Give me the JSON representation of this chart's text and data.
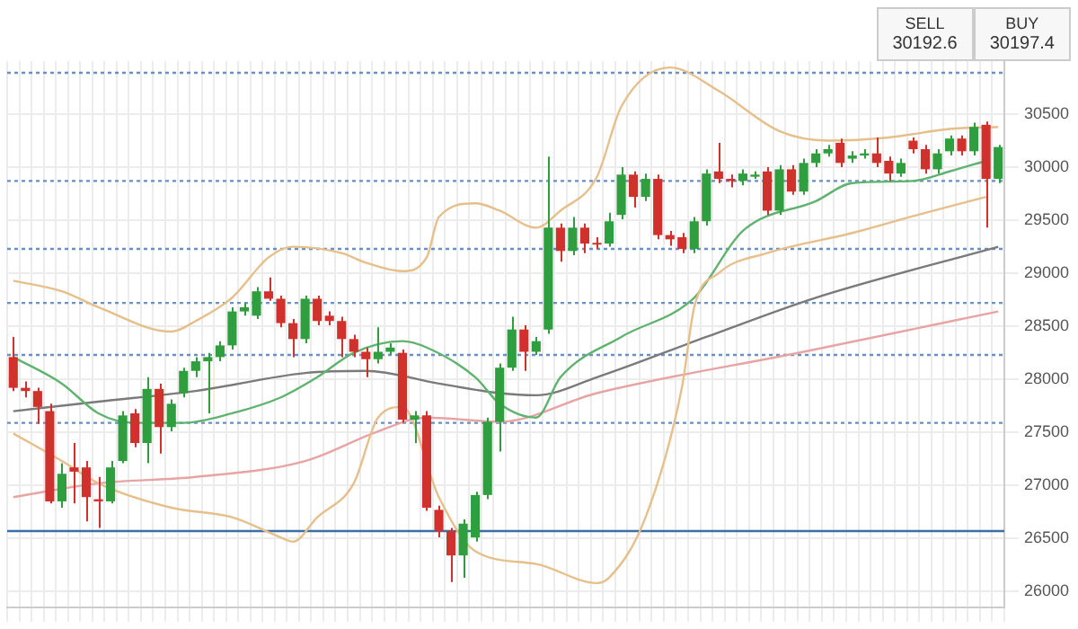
{
  "chart_data": {
    "type": "candlestick",
    "categories": [
      null,
      null,
      null,
      null,
      null,
      null,
      null,
      null,
      null,
      null,
      null,
      null,
      null,
      null,
      null,
      null,
      null,
      null,
      null,
      null,
      null,
      null,
      null,
      null,
      null,
      null,
      null,
      null,
      null,
      null,
      null,
      null,
      null,
      null,
      null,
      null,
      null,
      null,
      null,
      null,
      null,
      null,
      null,
      null,
      null,
      null,
      null,
      null,
      null,
      null,
      null,
      null,
      null,
      null,
      null,
      null,
      null,
      null,
      null,
      null,
      null,
      null,
      null,
      null,
      null,
      null,
      null,
      null,
      null,
      null,
      null,
      null,
      null,
      null,
      null,
      null,
      null,
      null,
      null,
      null,
      null,
      null
    ],
    "ohlc": [
      [
        28210,
        28400,
        27890,
        27920
      ],
      [
        27920,
        27980,
        27830,
        27890
      ],
      [
        27890,
        27920,
        27580,
        27740
      ],
      [
        27700,
        27770,
        26830,
        26850
      ],
      [
        26850,
        27210,
        26790,
        27110
      ],
      [
        27170,
        27400,
        26830,
        27130
      ],
      [
        27170,
        27230,
        26660,
        26890
      ],
      [
        26870,
        27080,
        26600,
        26850
      ],
      [
        26850,
        27230,
        26830,
        27170
      ],
      [
        27230,
        27700,
        27210,
        27660
      ],
      [
        27680,
        27720,
        27360,
        27400
      ],
      [
        27400,
        28020,
        27210,
        27910
      ],
      [
        27910,
        27960,
        27300,
        27550
      ],
      [
        27550,
        27810,
        27510,
        27770
      ],
      [
        27870,
        28110,
        27830,
        28080
      ],
      [
        28080,
        28210,
        28020,
        28170
      ],
      [
        28170,
        28250,
        27680,
        28210
      ],
      [
        28210,
        28360,
        28170,
        28320
      ],
      [
        28320,
        28680,
        28280,
        28640
      ],
      [
        28640,
        28720,
        28600,
        28680
      ],
      [
        28600,
        28870,
        28570,
        28830
      ],
      [
        28830,
        28960,
        28740,
        28760
      ],
      [
        28760,
        28790,
        28490,
        28530
      ],
      [
        28530,
        28570,
        28210,
        28380
      ],
      [
        28380,
        28790,
        28340,
        28760
      ],
      [
        28760,
        28790,
        28510,
        28550
      ],
      [
        28600,
        28640,
        28510,
        28550
      ],
      [
        28550,
        28590,
        28210,
        28380
      ],
      [
        28380,
        28420,
        28210,
        28260
      ],
      [
        28260,
        28300,
        28020,
        28190
      ],
      [
        28190,
        28490,
        28150,
        28260
      ],
      [
        28260,
        28340,
        28230,
        28300
      ],
      [
        28250,
        28280,
        27590,
        27620
      ],
      [
        27620,
        27700,
        27400,
        27660
      ],
      [
        27660,
        27700,
        26760,
        26790
      ],
      [
        26770,
        26810,
        26510,
        26570
      ],
      [
        26570,
        26600,
        26090,
        26340
      ],
      [
        26340,
        26680,
        26130,
        26640
      ],
      [
        26510,
        26940,
        26470,
        26910
      ],
      [
        26910,
        27640,
        26870,
        27600
      ],
      [
        27600,
        28150,
        27320,
        28110
      ],
      [
        28110,
        28590,
        28080,
        28470
      ],
      [
        28470,
        28510,
        28080,
        28260
      ],
      [
        28260,
        28400,
        28230,
        28360
      ],
      [
        28470,
        30100,
        28430,
        29430
      ],
      [
        29430,
        29470,
        29110,
        29210
      ],
      [
        29210,
        29530,
        29170,
        29430
      ],
      [
        29430,
        29470,
        29190,
        29280
      ],
      [
        29280,
        29340,
        29230,
        29270
      ],
      [
        29280,
        29570,
        29250,
        29490
      ],
      [
        29550,
        30000,
        29510,
        29930
      ],
      [
        29930,
        29960,
        29620,
        29720
      ],
      [
        29720,
        29940,
        29680,
        29890
      ],
      [
        29890,
        29930,
        29320,
        29360
      ],
      [
        29360,
        29400,
        29260,
        29320
      ],
      [
        29340,
        29380,
        29190,
        29230
      ],
      [
        29230,
        29530,
        29190,
        29490
      ],
      [
        29490,
        29980,
        29450,
        29940
      ],
      [
        29960,
        30230,
        29850,
        29890
      ],
      [
        29890,
        29930,
        29810,
        29870
      ],
      [
        29870,
        29980,
        29830,
        29940
      ],
      [
        29910,
        29960,
        29890,
        29930
      ],
      [
        29960,
        30000,
        29550,
        29590
      ],
      [
        29590,
        30020,
        29550,
        29980
      ],
      [
        29980,
        30020,
        29740,
        29770
      ],
      [
        29770,
        30080,
        29740,
        30040
      ],
      [
        30040,
        30170,
        30000,
        30130
      ],
      [
        30130,
        30210,
        30100,
        30170
      ],
      [
        30230,
        30270,
        30000,
        30040
      ],
      [
        30080,
        30150,
        30040,
        30110
      ],
      [
        30110,
        30170,
        30080,
        30130
      ],
      [
        30130,
        30280,
        30000,
        30040
      ],
      [
        30060,
        30100,
        29870,
        29940
      ],
      [
        29940,
        30080,
        29910,
        30040
      ],
      [
        30250,
        30280,
        30130,
        30170
      ],
      [
        30170,
        30210,
        29940,
        29980
      ],
      [
        29980,
        30170,
        29940,
        30130
      ],
      [
        30150,
        30300,
        30110,
        30270
      ],
      [
        30270,
        30300,
        30110,
        30150
      ],
      [
        30150,
        30420,
        30110,
        30380
      ],
      [
        30400,
        30430,
        29430,
        29890
      ],
      [
        29890,
        30210,
        29850,
        30190
      ]
    ],
    "series": [
      {
        "type": "line",
        "color": "#e6bf8a",
        "values": [
          28930,
          null,
          null,
          null,
          28830,
          null,
          null,
          28680,
          null,
          null,
          null,
          null,
          null,
          28450,
          null,
          28550,
          null,
          null,
          28770,
          null,
          null,
          29150,
          null,
          29250,
          null,
          null,
          null,
          29190,
          null,
          29100,
          null,
          null,
          29020,
          null,
          29150,
          29530,
          null,
          null,
          29660,
          null,
          29590,
          null,
          null,
          29430,
          null,
          29590,
          null,
          null,
          29910,
          null,
          30570,
          null,
          null,
          null,
          30940,
          null,
          null,
          null,
          30720,
          null,
          null,
          null,
          null,
          30340,
          null,
          null,
          null,
          30250,
          null,
          null,
          null,
          null,
          30280,
          null,
          null,
          null,
          null,
          30360,
          null,
          null,
          null,
          30380
        ]
      },
      {
        "type": "line",
        "color": "#e6bf8a",
        "values": [
          27490,
          null,
          null,
          null,
          27230,
          null,
          null,
          27020,
          null,
          null,
          null,
          null,
          null,
          26790,
          null,
          null,
          null,
          null,
          26700,
          null,
          null,
          null,
          26510,
          26470,
          null,
          26700,
          null,
          null,
          27020,
          null,
          27640,
          null,
          27740,
          null,
          null,
          26890,
          null,
          null,
          26380,
          null,
          null,
          null,
          null,
          26260,
          null,
          null,
          null,
          null,
          26080,
          26130,
          null,
          null,
          26700,
          null,
          null,
          27930,
          28680,
          null,
          29000,
          null,
          null,
          null,
          29190,
          null,
          null,
          null,
          null,
          null,
          null,
          29380,
          null,
          null,
          null,
          null,
          null,
          29570,
          null,
          null,
          null,
          null,
          29720,
          null
        ]
      },
      {
        "type": "line",
        "color": "#5fb36f",
        "values": [
          28210,
          null,
          null,
          null,
          27960,
          null,
          null,
          27680,
          null,
          null,
          27590,
          null,
          null,
          null,
          27590,
          null,
          null,
          null,
          27680,
          null,
          null,
          null,
          27830,
          null,
          null,
          28020,
          null,
          null,
          28250,
          null,
          null,
          null,
          28360,
          null,
          28300,
          null,
          null,
          null,
          28020,
          null,
          27770,
          null,
          null,
          27640,
          null,
          28020,
          null,
          null,
          null,
          null,
          28400,
          null,
          null,
          null,
          null,
          null,
          28770,
          null,
          null,
          null,
          29400,
          null,
          null,
          null,
          null,
          null,
          29680,
          null,
          null,
          29850,
          null,
          null,
          null,
          null,
          29870,
          null,
          null,
          29960,
          null,
          null,
          30060,
          null
        ]
      },
      {
        "type": "line",
        "color": "#7a7a7a",
        "values": [
          27700,
          null,
          null,
          null,
          null,
          null,
          null,
          27790,
          null,
          null,
          null,
          null,
          null,
          null,
          null,
          27890,
          null,
          null,
          null,
          null,
          null,
          null,
          null,
          null,
          28060,
          null,
          null,
          null,
          null,
          28080,
          null,
          null,
          null,
          null,
          null,
          27960,
          null,
          null,
          null,
          null,
          27870,
          null,
          null,
          27850,
          null,
          null,
          null,
          null,
          28020,
          null,
          null,
          null,
          null,
          null,
          null,
          null,
          null,
          28400,
          null,
          null,
          null,
          null,
          null,
          null,
          null,
          null,
          28770,
          null,
          null,
          null,
          null,
          null,
          null,
          null,
          null,
          null,
          null,
          null,
          null,
          null,
          null,
          29250
        ]
      },
      {
        "type": "line",
        "color": "#e8a3a3",
        "values": [
          26890,
          null,
          null,
          null,
          null,
          null,
          null,
          27020,
          null,
          null,
          null,
          null,
          null,
          null,
          null,
          27080,
          null,
          null,
          null,
          null,
          null,
          null,
          null,
          null,
          27230,
          null,
          null,
          null,
          null,
          null,
          27510,
          null,
          null,
          null,
          27640,
          null,
          null,
          null,
          null,
          null,
          27600,
          null,
          null,
          null,
          null,
          null,
          null,
          null,
          27870,
          null,
          null,
          null,
          null,
          null,
          null,
          null,
          null,
          null,
          null,
          null,
          null,
          null,
          null,
          null,
          null,
          28260,
          null,
          null,
          null,
          null,
          null,
          null,
          null,
          null,
          null,
          null,
          null,
          null,
          null,
          null,
          null,
          28640
        ]
      }
    ],
    "ylim": [
      25850,
      31000
    ],
    "yticks": [
      26000,
      26500,
      27000,
      27500,
      28000,
      28500,
      29000,
      29500,
      30000,
      30500
    ],
    "tick_labels": "y",
    "grid": true,
    "marker": "none",
    "ref_lines": [
      {
        "axis": "y",
        "value": 30890,
        "color": "#6b8fc0",
        "line_style": "dotted"
      },
      {
        "axis": "y",
        "value": 29870,
        "color": "#6b8fc0",
        "line_style": "dotted"
      },
      {
        "axis": "y",
        "value": 29230,
        "color": "#6b8fc0",
        "line_style": "dotted"
      },
      {
        "axis": "y",
        "value": 28720,
        "color": "#6b8fc0",
        "line_style": "dotted"
      },
      {
        "axis": "y",
        "value": 28230,
        "color": "#6b8fc0",
        "line_style": "dotted"
      },
      {
        "axis": "y",
        "value": 27590,
        "color": "#6b8fc0",
        "line_style": "dotted"
      },
      {
        "axis": "y",
        "value": 26570,
        "color": "#3a6ea5",
        "line_style": "solid"
      }
    ],
    "annotations": [
      "SELL",
      "30192.6",
      "BUY",
      "30197.4"
    ]
  }
}
